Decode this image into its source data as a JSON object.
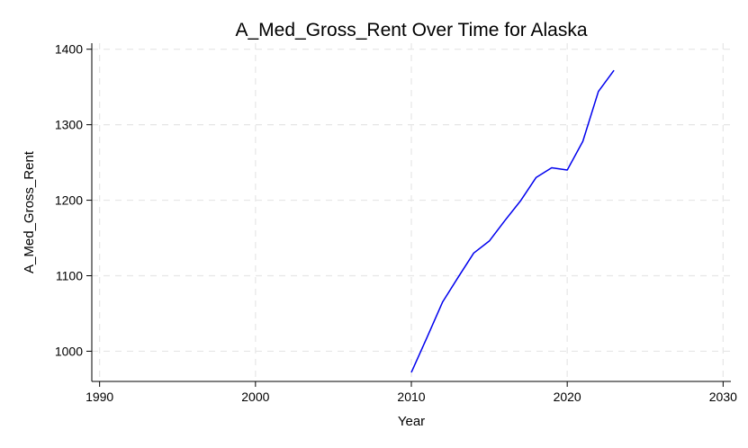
{
  "chart_data": {
    "type": "line",
    "title": "A_Med_Gross_Rent Over Time for Alaska",
    "xlabel": "Year",
    "ylabel": "A_Med_Gross_Rent",
    "xlim": [
      1989.5,
      2030.5
    ],
    "ylim": [
      960,
      1408
    ],
    "xticks": [
      1990,
      2000,
      2010,
      2020,
      2030
    ],
    "yticks": [
      1000,
      1100,
      1200,
      1300,
      1400
    ],
    "grid": true,
    "series": [
      {
        "color": "#0000ee",
        "x": [
          2010,
          2011,
          2012,
          2013,
          2014,
          2015,
          2016,
          2017,
          2018,
          2019,
          2020,
          2021,
          2022,
          2023
        ],
        "y": [
          972,
          1018,
          1065,
          1098,
          1130,
          1146,
          1173,
          1199,
          1230,
          1243,
          1240,
          1278,
          1344,
          1372
        ]
      }
    ]
  }
}
